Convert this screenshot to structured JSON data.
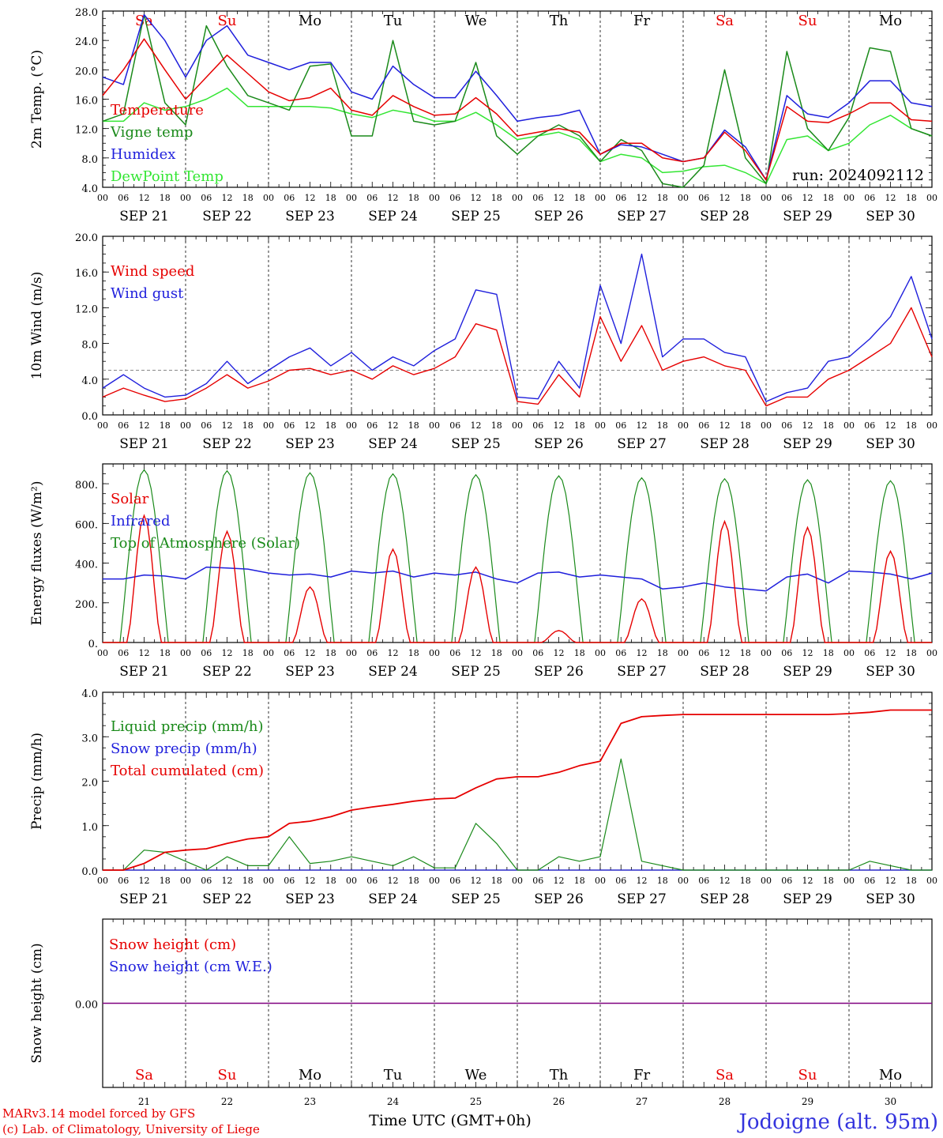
{
  "colors": {
    "red": "#e60000",
    "green": "#1a8a1a",
    "blue": "#1f1fdc",
    "lightgreen": "#33e633",
    "purple": "#800080",
    "gray": "#888888",
    "station": "#3333dd"
  },
  "days": {
    "names": [
      "Sa",
      "Su",
      "Mo",
      "Tu",
      "We",
      "Th",
      "Fr",
      "Sa",
      "Su",
      "Mo"
    ],
    "weekend": [
      true,
      true,
      false,
      false,
      false,
      false,
      false,
      true,
      true,
      false
    ],
    "dates": [
      "SEP 21",
      "SEP 22",
      "SEP 23",
      "SEP 24",
      "SEP 25",
      "SEP 26",
      "SEP 27",
      "SEP 28",
      "SEP 29",
      "SEP 30"
    ],
    "numbers": [
      "21",
      "22",
      "23",
      "24",
      "25",
      "26",
      "27",
      "28",
      "29",
      "30"
    ]
  },
  "hour_labels": [
    "00",
    "06",
    "12",
    "18"
  ],
  "final_hour_label": "00",
  "footer": {
    "model_line": "MARv3.14 model forced by GFS",
    "lab_line": "(c) Lab. of Climatology, University of Liege",
    "xaxis_label": "Time UTC (GMT+0h)",
    "station": "Jodoigne (alt. 95m)"
  },
  "chart_data": [
    {
      "id": "temperature",
      "type": "line",
      "ylabel": "2m Temp. (°C)",
      "ylim": [
        4.0,
        28.0
      ],
      "yticks": [
        "4.0",
        "8.0",
        "12.0",
        "16.0",
        "20.0",
        "24.0",
        "28.0"
      ],
      "run_label": "run: 2024092112",
      "legend": [
        "Temperature",
        "Vigne temp",
        "Humidex",
        "DewPoint Temp"
      ],
      "x_hours": [
        0,
        6,
        12,
        18,
        24,
        30,
        36,
        42,
        48,
        54,
        60,
        66,
        72,
        78,
        84,
        90,
        96,
        102,
        108,
        114,
        120,
        126,
        132,
        138,
        144,
        150,
        156,
        162,
        168,
        174,
        180,
        186,
        192,
        198,
        204,
        210,
        216,
        222,
        228,
        234,
        240
      ],
      "series": [
        {
          "name": "Temperature",
          "color": "red",
          "values": [
            16.5,
            20,
            24.2,
            20,
            16,
            19,
            22,
            19.5,
            17,
            15.8,
            16.2,
            17.5,
            14.5,
            13.8,
            16.5,
            15,
            13.8,
            14,
            16.2,
            14,
            11,
            11.5,
            12,
            11.5,
            8.5,
            10,
            10,
            8,
            7.5,
            8,
            11.5,
            9,
            5,
            15,
            13,
            12.8,
            14,
            15.5,
            15.5,
            13.2,
            13
          ]
        },
        {
          "name": "Vigne temp",
          "color": "green",
          "values": [
            13,
            14,
            27.5,
            15.5,
            12.5,
            26,
            20.5,
            16.5,
            15.5,
            14.5,
            20.5,
            20.8,
            11,
            11,
            24,
            13,
            12.5,
            13,
            21,
            11,
            8.5,
            11,
            12.5,
            11,
            7.5,
            10.5,
            9,
            4.5,
            4,
            7,
            20,
            8,
            4.5,
            22.5,
            12,
            9,
            13.5,
            23,
            22.5,
            12,
            11
          ]
        },
        {
          "name": "Humidex",
          "color": "blue",
          "values": [
            19,
            18,
            27.5,
            24,
            19,
            24,
            26,
            22,
            21,
            20,
            21,
            21,
            17,
            16,
            20.5,
            18,
            16.2,
            16.2,
            19.8,
            16.5,
            13,
            13.5,
            13.8,
            14.5,
            8.5,
            9.8,
            9.5,
            8.5,
            7.5,
            8,
            11.8,
            9.5,
            5,
            16.5,
            14,
            13.5,
            15.5,
            18.5,
            18.5,
            15.5,
            15
          ]
        },
        {
          "name": "DewPoint Temp",
          "color": "lightgreen",
          "values": [
            13,
            13,
            15.5,
            14.5,
            15,
            16,
            17.5,
            15,
            15,
            15,
            15,
            14.8,
            14,
            13.5,
            14.5,
            14,
            13,
            13,
            14.2,
            12.5,
            10.5,
            11,
            11.5,
            10.5,
            7.5,
            8.5,
            8,
            6,
            6.2,
            6.8,
            7,
            6,
            4.5,
            10.5,
            11,
            9,
            10,
            12.5,
            13.8,
            12,
            11
          ]
        }
      ]
    },
    {
      "id": "wind",
      "type": "line",
      "ylabel": "10m Wind (m/s)",
      "ylim": [
        0.0,
        20.0
      ],
      "yticks": [
        "0.0",
        "4.0",
        "8.0",
        "12.0",
        "16.0",
        "20.0"
      ],
      "reference_line": 5.0,
      "legend": [
        "Wind speed",
        "Wind gust"
      ],
      "x_hours": [
        0,
        6,
        12,
        18,
        24,
        30,
        36,
        42,
        48,
        54,
        60,
        66,
        72,
        78,
        84,
        90,
        96,
        102,
        108,
        114,
        120,
        126,
        132,
        138,
        144,
        150,
        156,
        162,
        168,
        174,
        180,
        186,
        192,
        198,
        204,
        210,
        216,
        222,
        228,
        234,
        240
      ],
      "series": [
        {
          "name": "Wind speed",
          "color": "red",
          "values": [
            2,
            3,
            2.2,
            1.5,
            1.8,
            3,
            4.5,
            3,
            3.8,
            5,
            5.2,
            4.5,
            5,
            4,
            5.5,
            4.5,
            5.2,
            6.5,
            10.2,
            9.5,
            1.5,
            1.2,
            4.5,
            2,
            11,
            6,
            10,
            5,
            6,
            6.5,
            5.5,
            5,
            1,
            2,
            2,
            4,
            5,
            6.5,
            8,
            12,
            6.5
          ]
        },
        {
          "name": "Wind gust",
          "color": "blue",
          "values": [
            3,
            4.5,
            3,
            2,
            2.2,
            3.5,
            6,
            3.5,
            5,
            6.5,
            7.5,
            5.5,
            7,
            5,
            6.5,
            5.5,
            7.2,
            8.5,
            14,
            13.5,
            2,
            1.8,
            6,
            3,
            14.5,
            8,
            18,
            6.5,
            8.5,
            8.5,
            7,
            6.5,
            1.5,
            2.5,
            3,
            6,
            6.5,
            8.5,
            11,
            15.5,
            8.5
          ]
        }
      ]
    },
    {
      "id": "fluxes",
      "type": "line",
      "ylabel": "Energy fluxes (W/m²)",
      "ylim": [
        0,
        900
      ],
      "yticks": [
        "0.",
        "200.",
        "400.",
        "600.",
        "800."
      ],
      "legend": [
        "Solar",
        "Infrared",
        "Top of Atmosphere (Solar)"
      ],
      "daily_toa_peak": [
        870,
        865,
        855,
        850,
        845,
        840,
        830,
        825,
        820,
        815
      ],
      "daily_solar_peak": [
        640,
        560,
        280,
        470,
        380,
        60,
        220,
        610,
        580,
        460
      ],
      "infrared_values": [
        320,
        320,
        340,
        335,
        320,
        380,
        375,
        370,
        350,
        340,
        345,
        330,
        360,
        350,
        360,
        330,
        350,
        340,
        355,
        320,
        300,
        350,
        355,
        330,
        340,
        330,
        320,
        270,
        280,
        300,
        280,
        270,
        260,
        330,
        345,
        300,
        360,
        355,
        345,
        320,
        350
      ]
    },
    {
      "id": "precip",
      "type": "line",
      "ylabel": "Precip (mm/h)",
      "ylim": [
        0.0,
        4.0
      ],
      "yticks": [
        "0.0",
        "1.0",
        "2.0",
        "3.0",
        "4.0"
      ],
      "legend": [
        "Liquid precip (mm/h)",
        "Snow precip (mm/h)",
        "Total cumulated (cm)"
      ],
      "x_hours": [
        0,
        6,
        12,
        18,
        24,
        30,
        36,
        42,
        48,
        54,
        60,
        66,
        72,
        78,
        84,
        90,
        96,
        102,
        108,
        114,
        120,
        126,
        132,
        138,
        144,
        150,
        156,
        162,
        168,
        174,
        180,
        186,
        192,
        198,
        204,
        210,
        216,
        222,
        228,
        234,
        240
      ],
      "series": [
        {
          "name": "Liquid precip (mm/h)",
          "color": "green",
          "values": [
            0,
            0,
            0.45,
            0.4,
            0.2,
            0,
            0.3,
            0.1,
            0.1,
            0.75,
            0.15,
            0.2,
            0.3,
            0.2,
            0.1,
            0.3,
            0.05,
            0.05,
            1.05,
            0.6,
            0,
            0,
            0.3,
            0.2,
            0.3,
            2.5,
            0.2,
            0.1,
            0,
            0,
            0,
            0,
            0,
            0,
            0,
            0,
            0,
            0.2,
            0.1,
            0,
            0
          ]
        },
        {
          "name": "Snow precip (mm/h)",
          "color": "blue",
          "values": [
            0,
            0,
            0,
            0,
            0,
            0,
            0,
            0,
            0,
            0,
            0,
            0,
            0,
            0,
            0,
            0,
            0,
            0,
            0,
            0,
            0,
            0,
            0,
            0,
            0,
            0,
            0,
            0,
            0,
            0,
            0,
            0,
            0,
            0,
            0,
            0,
            0,
            0,
            0,
            0,
            0
          ]
        },
        {
          "name": "Total cumulated (cm)",
          "color": "red",
          "values": [
            0,
            0,
            0.15,
            0.4,
            0.45,
            0.48,
            0.6,
            0.7,
            0.75,
            1.05,
            1.1,
            1.2,
            1.35,
            1.42,
            1.48,
            1.55,
            1.6,
            1.62,
            1.85,
            2.05,
            2.1,
            2.1,
            2.2,
            2.35,
            2.45,
            3.3,
            3.45,
            3.48,
            3.5,
            3.5,
            3.5,
            3.5,
            3.5,
            3.5,
            3.5,
            3.5,
            3.52,
            3.55,
            3.6,
            3.6,
            3.6
          ]
        }
      ]
    },
    {
      "id": "snow",
      "type": "line",
      "ylabel": "Snow height (cm)",
      "yticks": [
        "0.00"
      ],
      "legend": [
        "Snow height (cm)",
        "Snow height (cm W.E.)"
      ],
      "series": [
        {
          "name": "Snow height (cm)",
          "color": "red",
          "values": [
            0,
            0
          ]
        },
        {
          "name": "Snow height (cm W.E.)",
          "color": "blue",
          "values": [
            0,
            0
          ]
        }
      ]
    }
  ]
}
